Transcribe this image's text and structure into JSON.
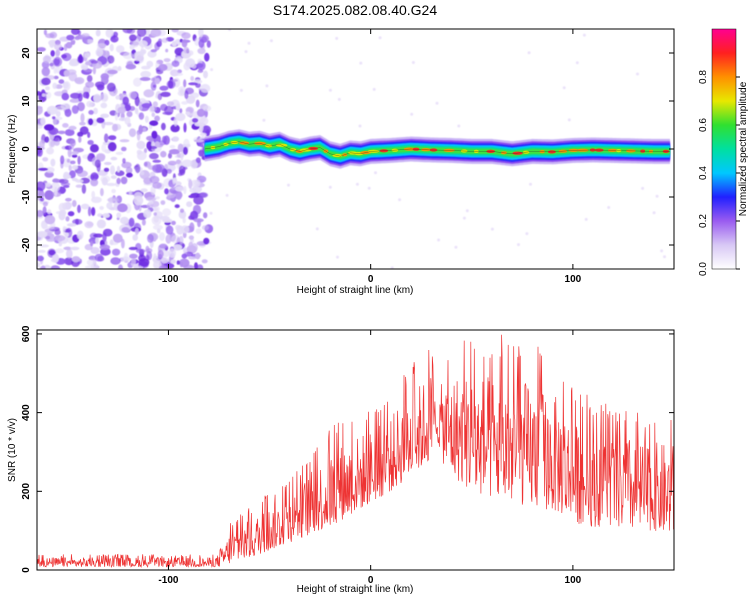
{
  "title": "S174.2025.082.08.40.G24",
  "chart_data": [
    {
      "type": "heatmap",
      "xlabel": "Height of straight line (km)",
      "ylabel": "Frequency (Hz)",
      "xlim": [
        -165,
        150
      ],
      "ylim": [
        -25,
        25
      ],
      "x_ticks": [
        -100,
        0,
        100
      ],
      "x_tick_labels": [
        "-100",
        "0",
        "100"
      ],
      "y_ticks": [
        -20,
        -10,
        0,
        10,
        20
      ],
      "y_tick_labels": [
        "-20",
        "-10",
        "0",
        "10",
        "20"
      ],
      "colorbar": {
        "label": "Normalized spectral amplitude",
        "range": [
          0,
          1
        ],
        "ticks": [
          0.0,
          0.2,
          0.4,
          0.6,
          0.8
        ],
        "tick_labels": [
          "0.0",
          "0.2",
          "0.4",
          "0.6",
          "0.8"
        ],
        "colors": [
          "#ffffff",
          "#d8c8f5",
          "#9a5cf0",
          "#2020ff",
          "#00c8ff",
          "#00e0a0",
          "#30e030",
          "#e8e800",
          "#ff9000",
          "#ff2020",
          "#ff0090"
        ]
      },
      "noise_region": {
        "x_range": [
          -165,
          -80
        ],
        "y_range": [
          -25,
          25
        ]
      },
      "signal_ridge": {
        "x": [
          -82,
          -75,
          -70,
          -65,
          -60,
          -55,
          -50,
          -45,
          -40,
          -35,
          -30,
          -25,
          -20,
          -15,
          -10,
          -5,
          0,
          10,
          20,
          30,
          40,
          50,
          60,
          70,
          80,
          90,
          100,
          110,
          120,
          130,
          140,
          148
        ],
        "y": [
          0.0,
          0.5,
          1.2,
          1.5,
          1.0,
          1.2,
          0.6,
          1.0,
          0.0,
          -0.5,
          0.0,
          0.3,
          -1.0,
          -1.5,
          -0.8,
          -1.0,
          -0.5,
          -0.3,
          0.0,
          -0.2,
          -0.3,
          -0.5,
          -0.5,
          -1.0,
          -0.5,
          -0.6,
          -0.3,
          -0.2,
          -0.3,
          -0.4,
          -0.5,
          -0.5
        ]
      }
    },
    {
      "type": "line",
      "xlabel": "Height of straight line (km)",
      "ylabel": "SNR (10 * v/v)",
      "xlim": [
        -165,
        150
      ],
      "ylim": [
        0,
        610
      ],
      "x_ticks": [
        -100,
        0,
        100
      ],
      "x_tick_labels": [
        "-100",
        "0",
        "100"
      ],
      "y_ticks": [
        0,
        200,
        400,
        600
      ],
      "y_tick_labels": [
        "0",
        "200",
        "400",
        "600"
      ],
      "color": "#ee3333",
      "envelope": {
        "x": [
          -165,
          -120,
          -80,
          -75,
          -70,
          -60,
          -50,
          -40,
          -30,
          -20,
          -10,
          0,
          10,
          15,
          20,
          25,
          30,
          33,
          36,
          40,
          50,
          60,
          70,
          80,
          90,
          95,
          100,
          110,
          120,
          130,
          140,
          150
        ],
        "y_low": [
          8,
          8,
          8,
          8,
          15,
          30,
          50,
          70,
          90,
          110,
          140,
          170,
          200,
          220,
          240,
          260,
          280,
          330,
          270,
          240,
          200,
          180,
          170,
          160,
          150,
          140,
          120,
          110,
          110,
          100,
          100,
          90
        ],
        "y_high": [
          40,
          40,
          40,
          50,
          120,
          160,
          200,
          230,
          300,
          370,
          400,
          420,
          450,
          500,
          520,
          550,
          580,
          480,
          560,
          590,
          600,
          600,
          600,
          580,
          550,
          520,
          460,
          440,
          420,
          420,
          400,
          400
        ]
      }
    }
  ]
}
